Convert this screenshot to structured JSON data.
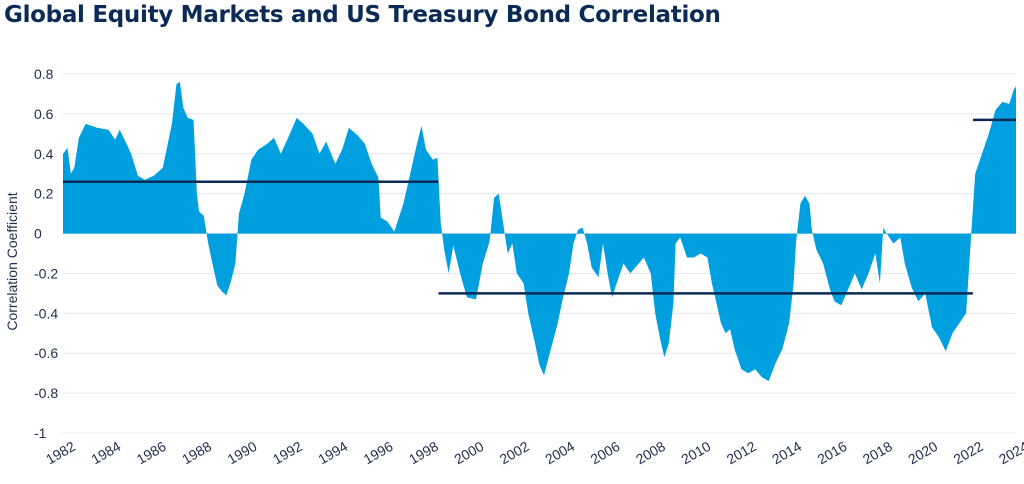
{
  "chart_data": {
    "type": "area",
    "title": "Global Equity Markets and US Treasury Bond Correlation",
    "xlabel": "",
    "ylabel": "Correlation Coefficient",
    "ylim": [
      -1,
      0.8
    ],
    "xlim": [
      1982,
      2024
    ],
    "grid": true,
    "colors": {
      "area": "#009fdf",
      "average_line": "#0b2a55",
      "grid": "#e3e7ee",
      "text": "#1f2f4d"
    },
    "y_ticks": [
      "0.8",
      "0.6",
      "0.4",
      "0.2",
      "0",
      "-0.2",
      "-0.4",
      "-0.6",
      "-0.8",
      "-1"
    ],
    "x_ticks": [
      "1982",
      "1984",
      "1986",
      "1988",
      "1990",
      "1992",
      "1994",
      "1996",
      "1998",
      "2000",
      "2002",
      "2004",
      "2006",
      "2008",
      "2010",
      "2012",
      "2014",
      "2016",
      "2018",
      "2020",
      "2022",
      "2024"
    ],
    "series": [
      {
        "values": [
          [
            1982.0,
            0.4
          ],
          [
            1982.2,
            0.43
          ],
          [
            1982.35,
            0.3
          ],
          [
            1982.5,
            0.33
          ],
          [
            1982.7,
            0.48
          ],
          [
            1983.0,
            0.55
          ],
          [
            1983.5,
            0.53
          ],
          [
            1984.0,
            0.52
          ],
          [
            1984.3,
            0.47
          ],
          [
            1984.5,
            0.52
          ],
          [
            1984.8,
            0.45
          ],
          [
            1985.0,
            0.4
          ],
          [
            1985.3,
            0.29
          ],
          [
            1985.6,
            0.27
          ],
          [
            1986.0,
            0.29
          ],
          [
            1986.4,
            0.33
          ],
          [
            1986.8,
            0.55
          ],
          [
            1987.0,
            0.75
          ],
          [
            1987.15,
            0.76
          ],
          [
            1987.3,
            0.63
          ],
          [
            1987.5,
            0.58
          ],
          [
            1987.75,
            0.57
          ],
          [
            1987.9,
            0.2
          ],
          [
            1988.0,
            0.11
          ],
          [
            1988.2,
            0.09
          ],
          [
            1988.4,
            -0.05
          ],
          [
            1988.6,
            -0.16
          ],
          [
            1988.8,
            -0.26
          ],
          [
            1989.0,
            -0.29
          ],
          [
            1989.2,
            -0.31
          ],
          [
            1989.4,
            -0.24
          ],
          [
            1989.6,
            -0.15
          ],
          [
            1989.75,
            0.1
          ],
          [
            1990.0,
            0.2
          ],
          [
            1990.3,
            0.37
          ],
          [
            1990.6,
            0.42
          ],
          [
            1991.0,
            0.45
          ],
          [
            1991.3,
            0.48
          ],
          [
            1991.6,
            0.4
          ],
          [
            1992.0,
            0.5
          ],
          [
            1992.3,
            0.58
          ],
          [
            1992.6,
            0.55
          ],
          [
            1993.0,
            0.5
          ],
          [
            1993.3,
            0.4
          ],
          [
            1993.6,
            0.46
          ],
          [
            1994.0,
            0.35
          ],
          [
            1994.3,
            0.42
          ],
          [
            1994.6,
            0.53
          ],
          [
            1995.0,
            0.49
          ],
          [
            1995.3,
            0.45
          ],
          [
            1995.6,
            0.35
          ],
          [
            1995.9,
            0.28
          ],
          [
            1996.0,
            0.08
          ],
          [
            1996.3,
            0.06
          ],
          [
            1996.6,
            0.01
          ],
          [
            1997.0,
            0.15
          ],
          [
            1997.3,
            0.3
          ],
          [
            1997.6,
            0.45
          ],
          [
            1997.8,
            0.54
          ],
          [
            1998.0,
            0.42
          ],
          [
            1998.3,
            0.37
          ],
          [
            1998.5,
            0.38
          ],
          [
            1998.65,
            0.05
          ],
          [
            1998.8,
            -0.08
          ],
          [
            1999.0,
            -0.2
          ],
          [
            1999.2,
            -0.06
          ],
          [
            1999.5,
            -0.2
          ],
          [
            1999.8,
            -0.32
          ],
          [
            2000.2,
            -0.33
          ],
          [
            2000.5,
            -0.15
          ],
          [
            2000.8,
            -0.04
          ],
          [
            2001.0,
            0.18
          ],
          [
            2001.2,
            0.2
          ],
          [
            2001.4,
            0.05
          ],
          [
            2001.6,
            -0.1
          ],
          [
            2001.8,
            -0.05
          ],
          [
            2002.0,
            -0.2
          ],
          [
            2002.3,
            -0.25
          ],
          [
            2002.5,
            -0.4
          ],
          [
            2002.8,
            -0.55
          ],
          [
            2003.0,
            -0.66
          ],
          [
            2003.2,
            -0.71
          ],
          [
            2003.5,
            -0.58
          ],
          [
            2003.8,
            -0.45
          ],
          [
            2004.0,
            -0.34
          ],
          [
            2004.3,
            -0.2
          ],
          [
            2004.5,
            -0.05
          ],
          [
            2004.7,
            0.02
          ],
          [
            2004.9,
            0.03
          ],
          [
            2005.1,
            -0.05
          ],
          [
            2005.3,
            -0.17
          ],
          [
            2005.6,
            -0.22
          ],
          [
            2005.8,
            -0.05
          ],
          [
            2006.0,
            -0.2
          ],
          [
            2006.2,
            -0.32
          ],
          [
            2006.4,
            -0.25
          ],
          [
            2006.7,
            -0.15
          ],
          [
            2007.0,
            -0.2
          ],
          [
            2007.3,
            -0.16
          ],
          [
            2007.6,
            -0.12
          ],
          [
            2007.9,
            -0.2
          ],
          [
            2008.1,
            -0.4
          ],
          [
            2008.3,
            -0.52
          ],
          [
            2008.5,
            -0.62
          ],
          [
            2008.7,
            -0.55
          ],
          [
            2008.9,
            -0.35
          ],
          [
            2009.0,
            -0.05
          ],
          [
            2009.2,
            -0.02
          ],
          [
            2009.5,
            -0.12
          ],
          [
            2009.8,
            -0.12
          ],
          [
            2010.1,
            -0.1
          ],
          [
            2010.4,
            -0.12
          ],
          [
            2010.6,
            -0.25
          ],
          [
            2010.8,
            -0.35
          ],
          [
            2011.0,
            -0.45
          ],
          [
            2011.2,
            -0.5
          ],
          [
            2011.4,
            -0.48
          ],
          [
            2011.6,
            -0.58
          ],
          [
            2011.9,
            -0.68
          ],
          [
            2012.2,
            -0.7
          ],
          [
            2012.5,
            -0.68
          ],
          [
            2012.8,
            -0.72
          ],
          [
            2013.1,
            -0.74
          ],
          [
            2013.4,
            -0.65
          ],
          [
            2013.7,
            -0.58
          ],
          [
            2014.0,
            -0.45
          ],
          [
            2014.2,
            -0.25
          ],
          [
            2014.3,
            -0.05
          ],
          [
            2014.5,
            0.15
          ],
          [
            2014.7,
            0.19
          ],
          [
            2014.9,
            0.15
          ],
          [
            2015.0,
            0.02
          ],
          [
            2015.2,
            -0.08
          ],
          [
            2015.5,
            -0.15
          ],
          [
            2015.8,
            -0.28
          ],
          [
            2016.0,
            -0.34
          ],
          [
            2016.3,
            -0.36
          ],
          [
            2016.6,
            -0.28
          ],
          [
            2016.9,
            -0.2
          ],
          [
            2017.2,
            -0.28
          ],
          [
            2017.5,
            -0.2
          ],
          [
            2017.8,
            -0.1
          ],
          [
            2018.0,
            -0.25
          ],
          [
            2018.15,
            0.03
          ],
          [
            2018.3,
            0.0
          ],
          [
            2018.6,
            -0.05
          ],
          [
            2018.9,
            -0.02
          ],
          [
            2019.1,
            -0.15
          ],
          [
            2019.4,
            -0.27
          ],
          [
            2019.7,
            -0.34
          ],
          [
            2020.0,
            -0.3
          ],
          [
            2020.3,
            -0.47
          ],
          [
            2020.6,
            -0.52
          ],
          [
            2020.9,
            -0.59
          ],
          [
            2021.2,
            -0.5
          ],
          [
            2021.5,
            -0.45
          ],
          [
            2021.8,
            -0.4
          ],
          [
            2022.0,
            -0.05
          ],
          [
            2022.2,
            0.3
          ],
          [
            2022.5,
            0.4
          ],
          [
            2022.8,
            0.5
          ],
          [
            2023.1,
            0.62
          ],
          [
            2023.4,
            0.66
          ],
          [
            2023.7,
            0.65
          ],
          [
            2023.9,
            0.72
          ],
          [
            2024.0,
            0.74
          ]
        ]
      }
    ],
    "average_lines": [
      {
        "x_start": 1982.0,
        "x_end": 1998.55,
        "y": 0.26
      },
      {
        "x_start": 1998.55,
        "x_end": 2022.1,
        "y": -0.3
      },
      {
        "x_start": 2022.1,
        "x_end": 2024.0,
        "y": 0.57
      }
    ]
  }
}
